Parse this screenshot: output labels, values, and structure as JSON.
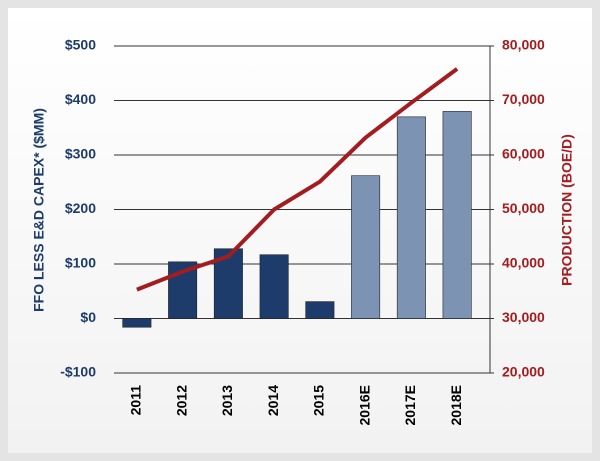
{
  "chart_data": {
    "type": "bar_line",
    "categories": [
      "2011",
      "2012",
      "2013",
      "2014",
      "2015",
      "2016E",
      "2017E",
      "2018E"
    ],
    "series": [
      {
        "name": "FFO LESS E&D CAPEX* ($MM)",
        "type": "bar",
        "axis": "y",
        "colors": [
          "#1d3c6b",
          "#1d3c6b",
          "#1d3c6b",
          "#1d3c6b",
          "#1d3c6b",
          "#7d93b3",
          "#7d93b3",
          "#7d93b3"
        ],
        "values": [
          -16,
          104,
          128,
          117,
          31,
          262,
          370,
          380
        ]
      },
      {
        "name": "PRODUCTION (BOE/D)",
        "type": "line",
        "axis": "y2",
        "color": "#a31c1f",
        "values": [
          35300,
          38600,
          41400,
          50000,
          55100,
          63200,
          69600,
          75800
        ]
      }
    ],
    "ylabel": "FFO LESS E&D CAPEX* ($MM)",
    "y2label": "PRODUCTION (BOE/D)",
    "ylim": [
      -100,
      500
    ],
    "yticks": [
      {
        "value": -100,
        "label": "-$100"
      },
      {
        "value": 0,
        "label": "$0"
      },
      {
        "value": 100,
        "label": "$100"
      },
      {
        "value": 200,
        "label": "$200"
      },
      {
        "value": 300,
        "label": "$300"
      },
      {
        "value": 400,
        "label": "$400"
      },
      {
        "value": 500,
        "label": "$500"
      }
    ],
    "y2lim": [
      20000,
      80000
    ],
    "y2ticks": [
      {
        "value": 20000,
        "label": "20,000"
      },
      {
        "value": 30000,
        "label": "30,000"
      },
      {
        "value": 40000,
        "label": "40,000"
      },
      {
        "value": 50000,
        "label": "50,000"
      },
      {
        "value": 60000,
        "label": "60,000"
      },
      {
        "value": 70000,
        "label": "70,000"
      },
      {
        "value": 80000,
        "label": "80,000"
      }
    ],
    "grid": true,
    "ycolor": "#1d3c6b",
    "y2color": "#a31c1f"
  }
}
